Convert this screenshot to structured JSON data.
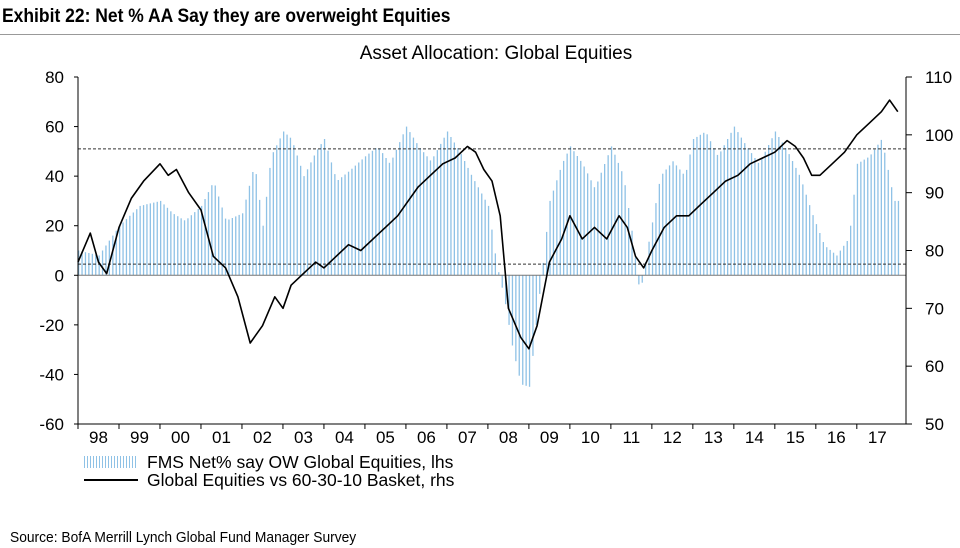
{
  "exhibit_title": "Exhibit 22: Net % AA Say they are overweight Equities",
  "source": "Source: BofA Merrill Lynch Global Fund Manager Survey",
  "chart_data": {
    "type": "bar+line",
    "title": "Asset Allocation: Global Equities",
    "x_tick_labels": [
      "98",
      "99",
      "00",
      "01",
      "02",
      "03",
      "04",
      "05",
      "06",
      "07",
      "08",
      "09",
      "10",
      "11",
      "12",
      "13",
      "14",
      "15",
      "16",
      "17"
    ],
    "x_range": [
      1998.0,
      2018.2
    ],
    "left_axis": {
      "ylim": [
        -60,
        80
      ],
      "ticks": [
        "80",
        "60",
        "40",
        "20",
        "0",
        "-20",
        "-40",
        "-60"
      ]
    },
    "right_axis": {
      "ylim": [
        50,
        110
      ],
      "ticks": [
        "110",
        "100",
        "90",
        "80",
        "70",
        "60",
        "50"
      ]
    },
    "reference_lines_lhs": [
      51,
      4.5
    ],
    "legend": [
      "FMS Net% say OW Global Equities, lhs",
      "Global Equities vs 60-30-10 Basket, rhs"
    ],
    "series": [
      {
        "name": "FMS Net% say OW Global Equities, lhs",
        "type": "bar",
        "color": "#8fc2e6",
        "x": [
          1998.0,
          1998.5,
          1999.0,
          1999.5,
          2000.0,
          2000.3,
          2000.6,
          2001.0,
          2001.3,
          2001.6,
          2002.0,
          2002.3,
          2002.5,
          2002.7,
          2003.0,
          2003.2,
          2003.5,
          2003.8,
          2004.0,
          2004.3,
          2004.6,
          2005.0,
          2005.3,
          2005.6,
          2006.0,
          2006.3,
          2006.6,
          2007.0,
          2007.3,
          2007.6,
          2008.0,
          2008.2,
          2008.4,
          2008.6,
          2008.8,
          2009.0,
          2009.2,
          2009.5,
          2009.8,
          2010.0,
          2010.3,
          2010.6,
          2011.0,
          2011.3,
          2011.5,
          2011.7,
          2011.9,
          2012.2,
          2012.5,
          2012.8,
          2013.0,
          2013.3,
          2013.6,
          2014.0,
          2014.3,
          2014.6,
          2015.0,
          2015.3,
          2015.6,
          2015.9,
          2016.2,
          2016.5,
          2016.8,
          2017.0,
          2017.3,
          2017.6,
          2017.9
        ],
        "values": [
          10,
          8,
          20,
          28,
          30,
          25,
          22,
          28,
          38,
          22,
          25,
          45,
          20,
          48,
          58,
          55,
          40,
          50,
          55,
          38,
          42,
          48,
          52,
          45,
          60,
          52,
          46,
          58,
          50,
          40,
          28,
          5,
          -10,
          -30,
          -44,
          -45,
          -15,
          30,
          45,
          52,
          45,
          35,
          52,
          40,
          18,
          -8,
          12,
          40,
          46,
          40,
          55,
          58,
          48,
          60,
          52,
          45,
          58,
          50,
          40,
          25,
          12,
          8,
          15,
          45,
          48,
          55,
          30
        ]
      },
      {
        "name": "Global Equities vs 60-30-10 Basket, rhs",
        "type": "line",
        "color": "#000000",
        "x": [
          1998.0,
          1998.3,
          1998.5,
          1998.7,
          1999.0,
          1999.3,
          1999.6,
          2000.0,
          2000.2,
          2000.4,
          2000.7,
          2001.0,
          2001.3,
          2001.6,
          2001.9,
          2002.2,
          2002.5,
          2002.8,
          2003.0,
          2003.2,
          2003.5,
          2003.8,
          2004.0,
          2004.3,
          2004.6,
          2004.9,
          2005.2,
          2005.5,
          2005.8,
          2006.0,
          2006.3,
          2006.6,
          2006.9,
          2007.2,
          2007.5,
          2007.7,
          2007.9,
          2008.1,
          2008.3,
          2008.5,
          2008.8,
          2009.0,
          2009.2,
          2009.5,
          2009.8,
          2010.0,
          2010.3,
          2010.6,
          2010.9,
          2011.2,
          2011.4,
          2011.6,
          2011.8,
          2012.0,
          2012.3,
          2012.6,
          2012.9,
          2013.2,
          2013.5,
          2013.8,
          2014.1,
          2014.4,
          2014.7,
          2015.0,
          2015.3,
          2015.5,
          2015.7,
          2015.9,
          2016.1,
          2016.4,
          2016.7,
          2017.0,
          2017.3,
          2017.6,
          2017.8,
          2018.0
        ],
        "values": [
          78,
          83,
          78,
          76,
          84,
          89,
          92,
          95,
          93,
          94,
          90,
          87,
          79,
          77,
          72,
          64,
          67,
          72,
          70,
          74,
          76,
          78,
          77,
          79,
          81,
          80,
          82,
          84,
          86,
          88,
          91,
          93,
          95,
          96,
          98,
          97,
          94,
          92,
          86,
          70,
          65,
          63,
          67,
          78,
          82,
          86,
          82,
          84,
          82,
          86,
          84,
          79,
          77,
          80,
          84,
          86,
          86,
          88,
          90,
          92,
          93,
          95,
          96,
          97,
          99,
          98,
          96,
          93,
          93,
          95,
          97,
          100,
          102,
          104,
          106,
          104
        ]
      }
    ]
  }
}
